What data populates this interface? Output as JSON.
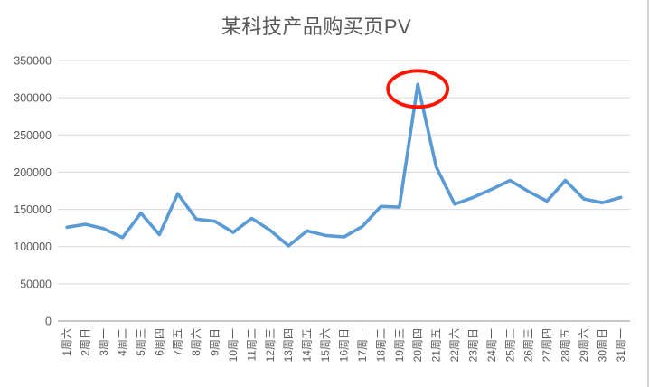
{
  "chart_data": {
    "type": "line",
    "title": "某科技产品购买页PV",
    "categories": [
      "1周六",
      "2周日",
      "3周一",
      "4周二",
      "5周三",
      "6周四",
      "7周五",
      "8周六",
      "9周日",
      "10周一",
      "11周二",
      "12周三",
      "13周四",
      "14周五",
      "15周六",
      "16周日",
      "17周一",
      "18周二",
      "19周三",
      "20周四",
      "21周五",
      "22周六",
      "23周日",
      "24周一",
      "25周二",
      "26周三",
      "27周四",
      "28周五",
      "29周六",
      "30周日",
      "31周一"
    ],
    "values": [
      126000,
      130000,
      124000,
      112000,
      145000,
      116000,
      171000,
      137000,
      134000,
      119000,
      138000,
      122000,
      101000,
      121000,
      115000,
      113000,
      127000,
      154000,
      153000,
      318000,
      207000,
      157000,
      166000,
      177000,
      189000,
      174000,
      161000,
      189000,
      164000,
      159000,
      166000
    ],
    "xlabel": "",
    "ylabel": "",
    "ylim": [
      0,
      350000
    ],
    "y_ticks": [
      0,
      50000,
      100000,
      150000,
      200000,
      250000,
      300000,
      350000
    ],
    "grid": true,
    "legend": "none",
    "line_color": "#5B9BD5",
    "annotation": {
      "type": "ellipse-highlight",
      "category": "20周四",
      "category_index": 19,
      "color": "#FE1400"
    }
  },
  "style": {
    "grid_color": "#D9D9D9",
    "axis_color": "#C8C8C8",
    "label_color": "#595959",
    "title_color": "#595959",
    "background": "#FFFFFF",
    "window_border": "#D2D2D2"
  }
}
